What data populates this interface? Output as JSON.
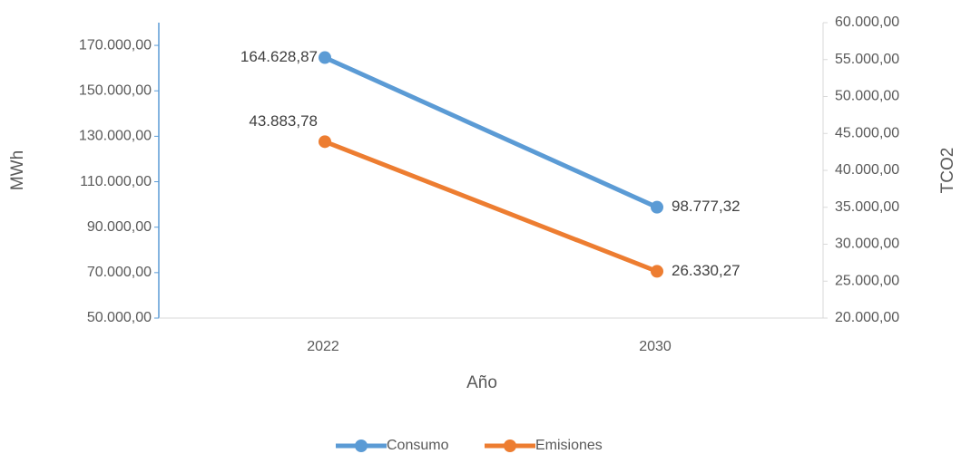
{
  "chart_data": {
    "type": "line",
    "categories": [
      "2022",
      "2030"
    ],
    "series": [
      {
        "name": "Consumo",
        "color": "#5b9bd5",
        "values": [
          164628.87,
          98777.32
        ],
        "value_labels": [
          "164.628,87",
          "98.777,32"
        ]
      },
      {
        "name": "Emisiones",
        "color": "#ed7d31",
        "axis": "y2",
        "values": [
          43883.78,
          26330.27
        ],
        "value_labels": [
          "43.883,78",
          "26.330,27"
        ]
      }
    ],
    "x_label": "Año",
    "y_label": "MWh",
    "y2_label": "TCO2",
    "ylim": [
      50000,
      180000
    ],
    "yticks": [
      {
        "value": 50000,
        "label": "50.000,00"
      },
      {
        "value": 70000,
        "label": "70.000,00"
      },
      {
        "value": 90000,
        "label": "90.000,00"
      },
      {
        "value": 110000,
        "label": "110.000,00"
      },
      {
        "value": 130000,
        "label": "130.000,00"
      },
      {
        "value": 150000,
        "label": "150.000,00"
      },
      {
        "value": 170000,
        "label": "170.000,00"
      }
    ],
    "y2lim": [
      20000,
      60000
    ],
    "y2ticks": [
      {
        "value": 20000,
        "label": "20.000,00"
      },
      {
        "value": 25000,
        "label": "25.000,00"
      },
      {
        "value": 30000,
        "label": "30.000,00"
      },
      {
        "value": 35000,
        "label": "35.000,00"
      },
      {
        "value": 40000,
        "label": "40.000,00"
      },
      {
        "value": 45000,
        "label": "45.000,00"
      },
      {
        "value": 50000,
        "label": "50.000,00"
      },
      {
        "value": 55000,
        "label": "55.000,00"
      },
      {
        "value": 60000,
        "label": "60.000,00"
      }
    ],
    "legend": "bottom"
  }
}
